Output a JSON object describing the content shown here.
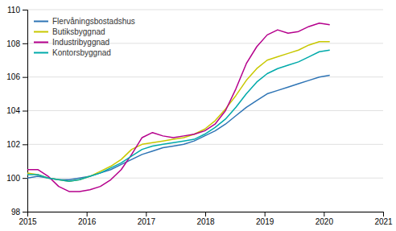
{
  "chart_data": {
    "type": "line",
    "x": [
      2015,
      2015.1758620689654,
      2015.351724137931,
      2015.5275862068966,
      2015.703448275862,
      2015.8793103448277,
      2016.0551724137931,
      2016.2310344827586,
      2016.4068965517242,
      2016.5827586206897,
      2016.7586206896551,
      2016.9344827586208,
      2017.1103448275862,
      2017.2862068965517,
      2017.4620689655171,
      2017.6379310344828,
      2017.8137931034482,
      2017.989655172414,
      2018.1655172413793,
      2018.3413793103448,
      2018.5172413793102,
      2018.693103448276,
      2018.8689655172413,
      2019.0448275862068,
      2019.2206896551725,
      2019.396551724138,
      2019.5724137931034,
      2019.748275862069,
      2019.9241379310345,
      2020.1
    ],
    "xlim": [
      2015,
      2021
    ],
    "xticks": [
      2015,
      2016,
      2017,
      2018,
      2019,
      2020,
      2021
    ],
    "ylim": [
      98,
      110
    ],
    "yticks": [
      98,
      100,
      102,
      104,
      106,
      108,
      110
    ],
    "grid": true,
    "legend": "upper left",
    "series": [
      {
        "name": "Flervåningsbostadshus",
        "color": "#2e74b5",
        "values": [
          100.0,
          100.1,
          100.0,
          99.9,
          99.9,
          100.0,
          100.1,
          100.3,
          100.5,
          100.8,
          101.1,
          101.4,
          101.6,
          101.8,
          101.9,
          102.0,
          102.2,
          102.5,
          102.8,
          103.2,
          103.7,
          104.2,
          104.6,
          105.0,
          105.2,
          105.4,
          105.6,
          105.8,
          106.0,
          106.1
        ]
      },
      {
        "name": "Butiksbyggnad",
        "color": "#c8c800",
        "values": [
          100.3,
          100.2,
          100.0,
          99.9,
          99.8,
          99.9,
          100.1,
          100.4,
          100.7,
          101.1,
          101.7,
          102.0,
          102.1,
          102.2,
          102.3,
          102.4,
          102.6,
          102.9,
          103.4,
          104.1,
          104.9,
          105.8,
          106.5,
          107.0,
          107.2,
          107.4,
          107.6,
          107.9,
          108.1,
          108.1
        ]
      },
      {
        "name": "Industribyggnad",
        "color": "#b5008c",
        "values": [
          100.5,
          100.5,
          100.1,
          99.5,
          99.2,
          99.2,
          99.3,
          99.5,
          99.9,
          100.5,
          101.4,
          102.4,
          102.7,
          102.5,
          102.4,
          102.5,
          102.6,
          102.8,
          103.2,
          104.0,
          105.3,
          106.8,
          107.8,
          108.5,
          108.8,
          108.6,
          108.7,
          109.0,
          109.2,
          109.1
        ]
      },
      {
        "name": "Kontorsbyggnad",
        "color": "#00aaaa",
        "values": [
          100.2,
          100.2,
          100.0,
          99.9,
          99.8,
          99.9,
          100.1,
          100.3,
          100.6,
          100.9,
          101.3,
          101.7,
          101.9,
          102.0,
          102.1,
          102.2,
          102.3,
          102.6,
          103.0,
          103.5,
          104.2,
          105.0,
          105.7,
          106.2,
          106.5,
          106.7,
          106.9,
          107.2,
          107.5,
          107.6
        ]
      }
    ]
  }
}
